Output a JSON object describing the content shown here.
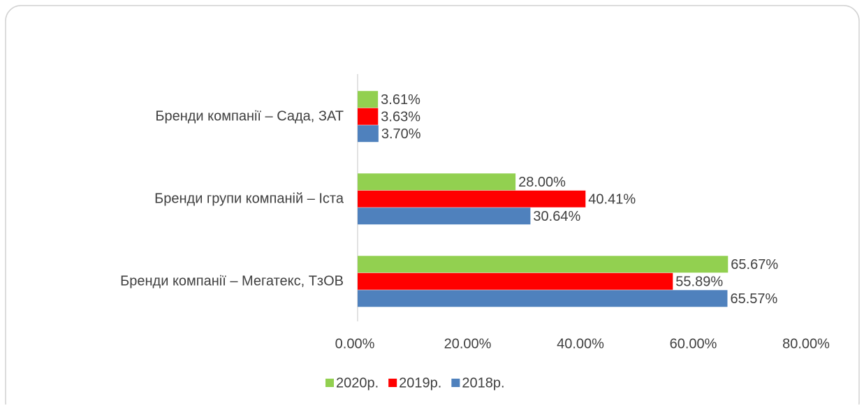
{
  "chart_data": {
    "type": "barh",
    "categories": [
      "Бренди компанії – Сада, ЗАТ",
      "Бренди групи компаній – Іста",
      "Бренди компанії – Мегатекс, ТзОВ"
    ],
    "series": [
      {
        "name": "2020р.",
        "color": "#92d050",
        "values": [
          3.61,
          28.0,
          65.67
        ],
        "value_labels": [
          "3.61%",
          "28.00%",
          "65.67%"
        ]
      },
      {
        "name": "2019р.",
        "color": "#ff0000",
        "values": [
          3.63,
          40.41,
          55.89
        ],
        "value_labels": [
          "3.63%",
          "40.41%",
          "55.89%"
        ]
      },
      {
        "name": "2018р.",
        "color": "#4f81bd",
        "values": [
          3.7,
          30.64,
          65.57
        ],
        "value_labels": [
          "3.70%",
          "30.64%",
          "65.57%"
        ]
      }
    ],
    "xlim": [
      0,
      80
    ],
    "xticks": [
      {
        "value": 0,
        "label": "0.00%"
      },
      {
        "value": 20,
        "label": "20.00%"
      },
      {
        "value": 40,
        "label": "40.00%"
      },
      {
        "value": 60,
        "label": "60.00%"
      },
      {
        "value": 80,
        "label": "80.00%"
      }
    ],
    "legend": "bottom"
  }
}
